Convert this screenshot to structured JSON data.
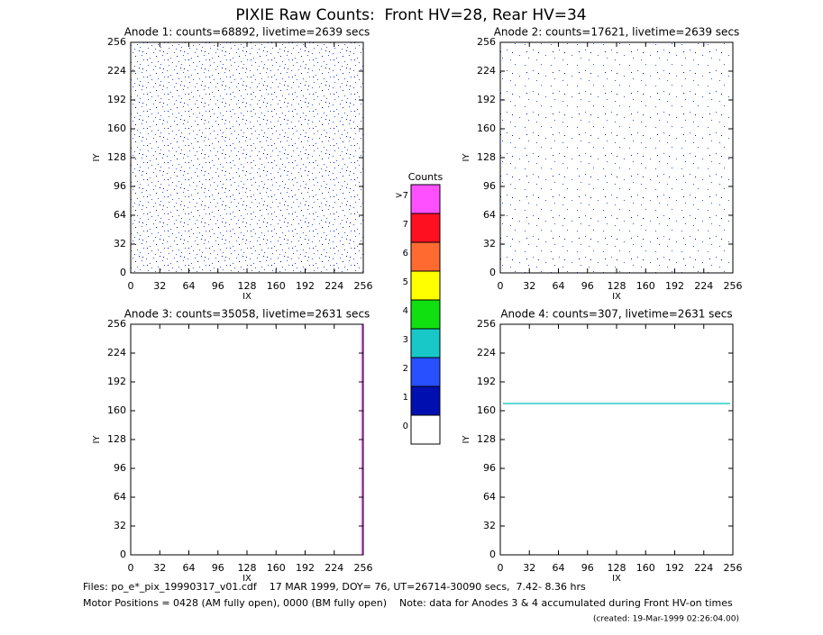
{
  "title": "PIXIE Raw Counts:  Front HV=28, Rear HV=34",
  "chart_data": [
    {
      "type": "heatmap",
      "title": "Anode 1: counts=68892, livetime=2639 secs",
      "xlabel": "IX",
      "ylabel": "IY",
      "xlim": [
        0,
        256
      ],
      "ylim": [
        0,
        256
      ],
      "xticks": [
        0,
        32,
        64,
        96,
        128,
        160,
        192,
        224,
        256
      ],
      "yticks": [
        0,
        32,
        64,
        96,
        128,
        160,
        192,
        224,
        256
      ]
    },
    {
      "type": "heatmap",
      "title": "Anode 2: counts=17621, livetime=2639 secs",
      "xlabel": "IX",
      "ylabel": "IY",
      "xlim": [
        0,
        256
      ],
      "ylim": [
        0,
        256
      ],
      "xticks": [
        0,
        32,
        64,
        96,
        128,
        160,
        192,
        224,
        256
      ],
      "yticks": [
        0,
        32,
        64,
        96,
        128,
        160,
        192,
        224,
        256
      ]
    },
    {
      "type": "heatmap",
      "title": "Anode 3: counts=35058, livetime=2631 secs",
      "xlabel": "IX",
      "ylabel": "IY",
      "xlim": [
        0,
        256
      ],
      "ylim": [
        0,
        256
      ],
      "xticks": [
        0,
        32,
        64,
        96,
        128,
        160,
        192,
        224,
        256
      ],
      "yticks": [
        0,
        32,
        64,
        96,
        128,
        160,
        192,
        224,
        256
      ]
    },
    {
      "type": "heatmap",
      "title": "Anode 4: counts=307, livetime=2631 secs",
      "xlabel": "IX",
      "ylabel": "IY",
      "xlim": [
        0,
        256
      ],
      "ylim": [
        0,
        256
      ],
      "xticks": [
        0,
        32,
        64,
        96,
        128,
        160,
        192,
        224,
        256
      ],
      "yticks": [
        0,
        32,
        64,
        96,
        128,
        160,
        192,
        224,
        256
      ]
    }
  ],
  "colorbar": {
    "title": "Counts",
    "levels": [
      {
        "label": "0",
        "color": "#ffffff"
      },
      {
        "label": "1",
        "color": "#0010b0"
      },
      {
        "label": "2",
        "color": "#2850ff"
      },
      {
        "label": "3",
        "color": "#18c8c8"
      },
      {
        "label": "4",
        "color": "#10e010"
      },
      {
        "label": "5",
        "color": "#ffff00"
      },
      {
        "label": "6",
        "color": "#ff6a30"
      },
      {
        "label": "7",
        "color": "#ff1020"
      },
      {
        "label": ">7",
        "color": "#ff50ff"
      }
    ]
  },
  "footer": [
    "Files: po_e*_pix_19990317_v01.cdf    17 MAR 1999, DOY= 76, UT=26714-30090 secs,  7.42- 8.36 hrs",
    "Motor Positions = 0428 (AM fully open), 0000 (BM fully open)    Note: data for Anodes 3 & 4 accumulated during Front HV-on times",
    "(created: 19-Mar-1999 02:26:04.00)"
  ]
}
